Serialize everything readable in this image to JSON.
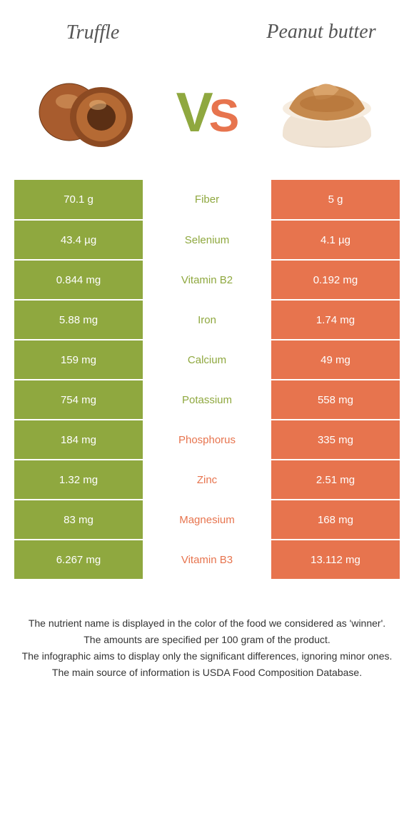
{
  "colors": {
    "truffle": "#8fa83f",
    "peanut": "#e7744e",
    "truffle_text": "#8fa83f",
    "peanut_text": "#e7744e",
    "title": "#555555",
    "footer": "#333333",
    "white": "#ffffff"
  },
  "header": {
    "left_title": "Truffle",
    "right_title": "Peanut butter",
    "vs_v": "V",
    "vs_s": "S"
  },
  "rows": [
    {
      "left": "70.1 g",
      "nutrient": "Fiber",
      "right": "5 g",
      "winner": "truffle"
    },
    {
      "left": "43.4 µg",
      "nutrient": "Selenium",
      "right": "4.1 µg",
      "winner": "truffle"
    },
    {
      "left": "0.844 mg",
      "nutrient": "Vitamin B2",
      "right": "0.192 mg",
      "winner": "truffle"
    },
    {
      "left": "5.88 mg",
      "nutrient": "Iron",
      "right": "1.74 mg",
      "winner": "truffle"
    },
    {
      "left": "159 mg",
      "nutrient": "Calcium",
      "right": "49 mg",
      "winner": "truffle"
    },
    {
      "left": "754 mg",
      "nutrient": "Potassium",
      "right": "558 mg",
      "winner": "truffle"
    },
    {
      "left": "184 mg",
      "nutrient": "Phosphorus",
      "right": "335 mg",
      "winner": "peanut"
    },
    {
      "left": "1.32 mg",
      "nutrient": "Zinc",
      "right": "2.51 mg",
      "winner": "peanut"
    },
    {
      "left": "83 mg",
      "nutrient": "Magnesium",
      "right": "168 mg",
      "winner": "peanut"
    },
    {
      "left": "6.267 mg",
      "nutrient": "Vitamin B3",
      "right": "13.112 mg",
      "winner": "peanut"
    }
  ],
  "footer": {
    "line1": "The nutrient name is displayed in the color of the food we considered as 'winner'.",
    "line2": "The amounts are specified per 100 gram of the product.",
    "line3": "The infographic aims to display only the significant differences, ignoring minor ones.",
    "line4": "The main source of information is USDA Food Composition Database."
  }
}
